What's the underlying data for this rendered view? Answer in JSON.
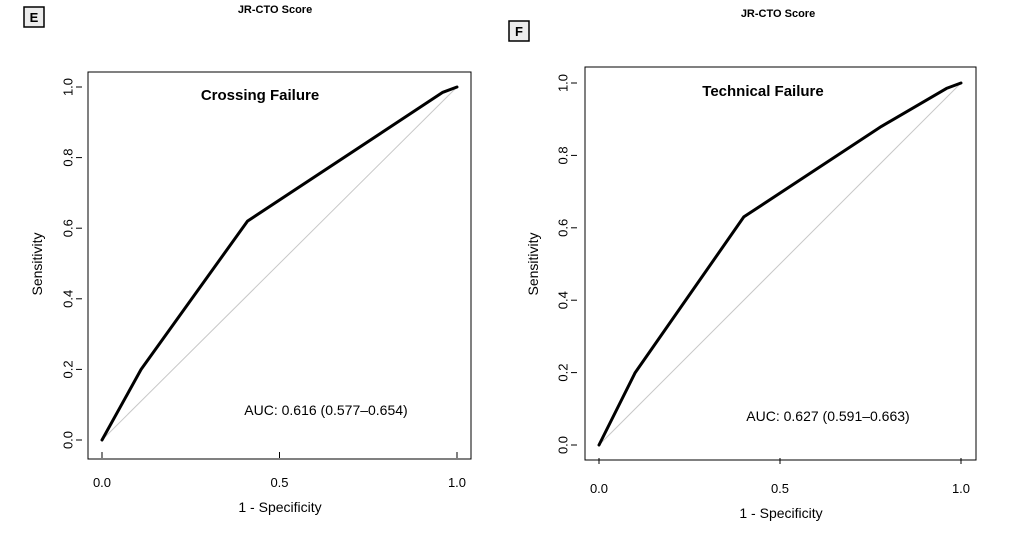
{
  "chart_data": [
    {
      "type": "line",
      "panel_label": "E",
      "suptitle": "JR-CTO Score",
      "title": "Crossing Failure",
      "xlabel": "1 - Specificity",
      "ylabel": "Sensitivity",
      "xlim": [
        0,
        1
      ],
      "ylim": [
        0,
        1
      ],
      "xticks": [
        "0.0",
        "0.5",
        "1.0"
      ],
      "yticks": [
        "0.0",
        "0.2",
        "0.4",
        "0.6",
        "0.8",
        "1.0"
      ],
      "reference_line": "diagonal",
      "auc_text": "AUC: 0.616 (0.577–0.654)",
      "series": [
        {
          "name": "ROC",
          "x": [
            0.0,
            0.11,
            0.41,
            0.96,
            1.0
          ],
          "y": [
            0.0,
            0.2,
            0.62,
            0.985,
            1.0
          ]
        }
      ]
    },
    {
      "type": "line",
      "panel_label": "F",
      "suptitle": "JR-CTO Score",
      "title": "Technical Failure",
      "xlabel": "1 - Specificity",
      "ylabel": "Sensitivity",
      "xlim": [
        0,
        1
      ],
      "ylim": [
        0,
        1
      ],
      "xticks": [
        "0.0",
        "0.5",
        "1.0"
      ],
      "yticks": [
        "0.0",
        "0.2",
        "0.4",
        "0.6",
        "0.8",
        "1.0"
      ],
      "reference_line": "diagonal",
      "auc_text": "AUC: 0.627 (0.591–0.663)",
      "series": [
        {
          "name": "ROC",
          "x": [
            0.0,
            0.1,
            0.4,
            0.78,
            0.96,
            1.0
          ],
          "y": [
            0.0,
            0.2,
            0.63,
            0.88,
            0.985,
            1.0
          ]
        }
      ]
    }
  ]
}
